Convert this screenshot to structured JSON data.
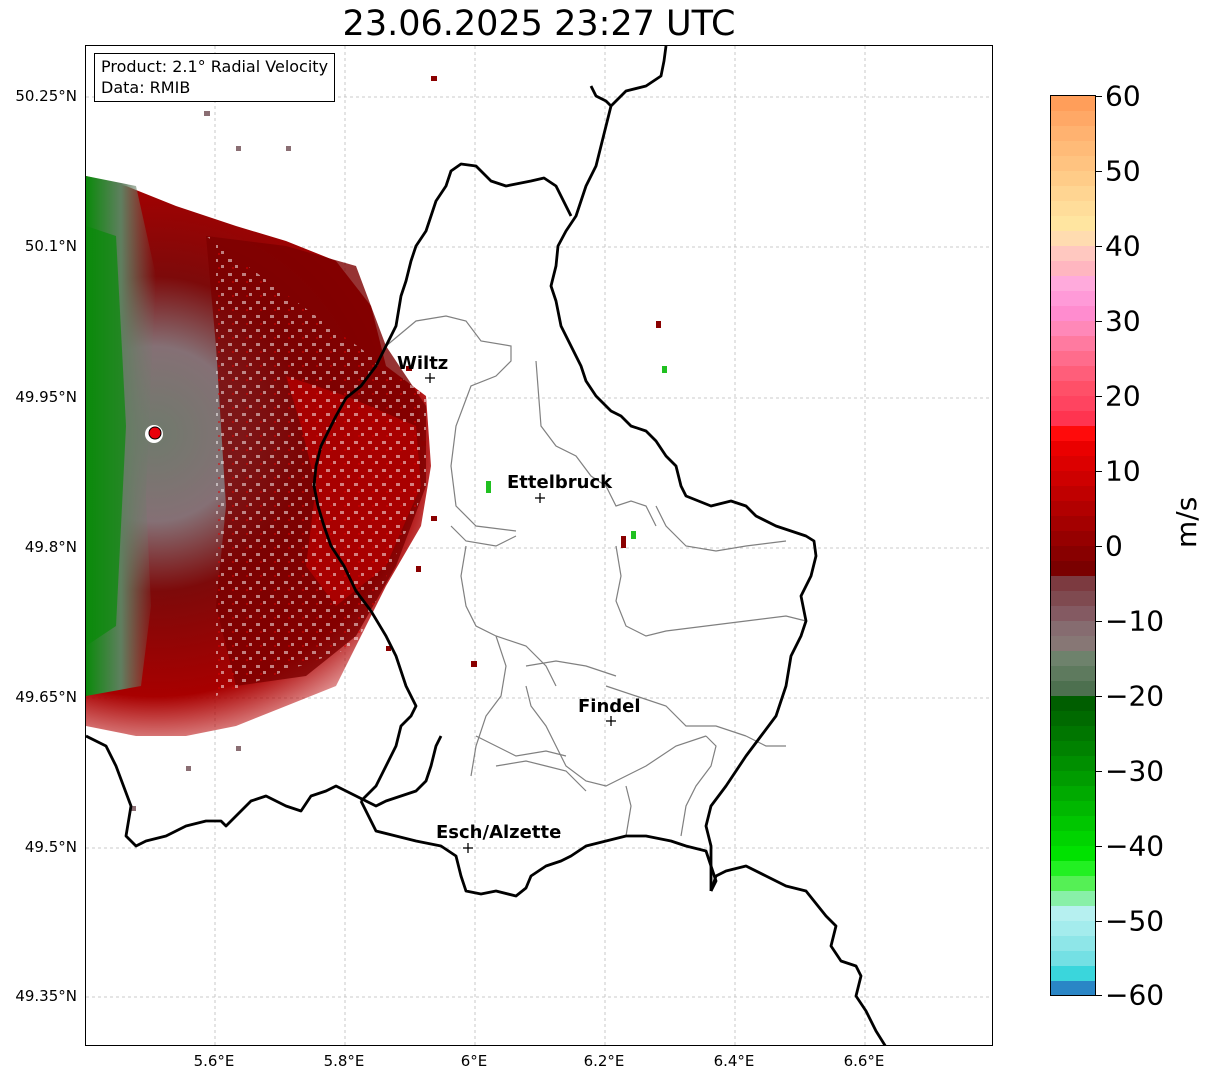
{
  "title": "23.06.2025 23:27 UTC",
  "info": {
    "product": "Product: 2.1° Radial Velocity",
    "data_source": "Data: RMIB"
  },
  "map": {
    "lat_ticks": [
      "50.25°N",
      "50.1°N",
      "49.95°N",
      "49.8°N",
      "49.65°N",
      "49.5°N",
      "49.35°N"
    ],
    "lon_ticks": [
      "5.6°E",
      "5.8°E",
      "6°E",
      "6.2°E",
      "6.4°E",
      "6.6°E"
    ],
    "cities": [
      {
        "name": "Wiltz"
      },
      {
        "name": "Ettelbruck"
      },
      {
        "name": "Findel"
      },
      {
        "name": "Esch/Alzette"
      }
    ],
    "radar_site_color": "#e8000b"
  },
  "colorbar": {
    "unit": "m/s",
    "ticks": [
      "60",
      "50",
      "40",
      "30",
      "20",
      "10",
      "0",
      "−10",
      "−20",
      "−30",
      "−40",
      "−50",
      "−60"
    ],
    "range": [
      -60,
      60
    ]
  },
  "colors": {
    "inbound_strong": "#008000",
    "inbound_weak": "#5f7f5f",
    "near_zero": "#8a6e73",
    "outbound": "#7a0000",
    "outbound_strong": "#d00000"
  }
}
